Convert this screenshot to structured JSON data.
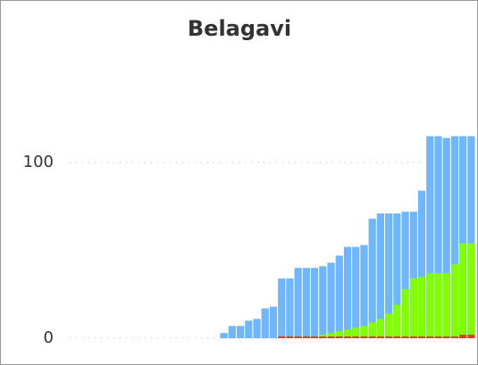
{
  "chart_data": {
    "type": "bar",
    "title": "Belagavi",
    "categories": [
      null,
      null,
      null,
      null,
      null,
      null,
      null,
      null,
      null,
      null,
      null,
      null,
      null,
      null,
      null,
      null,
      null,
      null,
      null,
      null,
      null,
      null,
      null,
      null,
      null,
      null,
      null,
      null,
      null,
      null,
      null
    ],
    "series": [
      {
        "color": "#6eb6ff",
        "values": [
          3,
          7,
          7,
          10,
          11,
          17,
          18,
          34,
          34,
          40,
          40,
          40,
          41,
          43,
          47,
          52,
          52,
          53,
          68,
          71,
          71,
          71,
          72,
          72,
          84,
          115,
          115,
          114,
          115,
          115,
          115
        ]
      },
      {
        "color": "#80ff00",
        "values": [
          0,
          0,
          0,
          0,
          0,
          0,
          0,
          0,
          0,
          0,
          0,
          0,
          2,
          3,
          4,
          5,
          6,
          7,
          9,
          11,
          14,
          19,
          28,
          34,
          35,
          37,
          37,
          37,
          42,
          54,
          54
        ]
      },
      {
        "color": "#d9401c",
        "values": [
          0,
          0,
          0,
          0,
          0,
          0,
          0,
          1,
          1,
          1,
          1,
          1,
          1,
          1,
          1,
          1,
          1,
          1,
          1,
          1,
          1,
          1,
          1,
          1,
          1,
          1,
          1,
          1,
          1,
          2,
          2
        ]
      }
    ],
    "ylim": [
      0,
      160
    ],
    "yticks": [
      0,
      100
    ],
    "grid": true
  }
}
